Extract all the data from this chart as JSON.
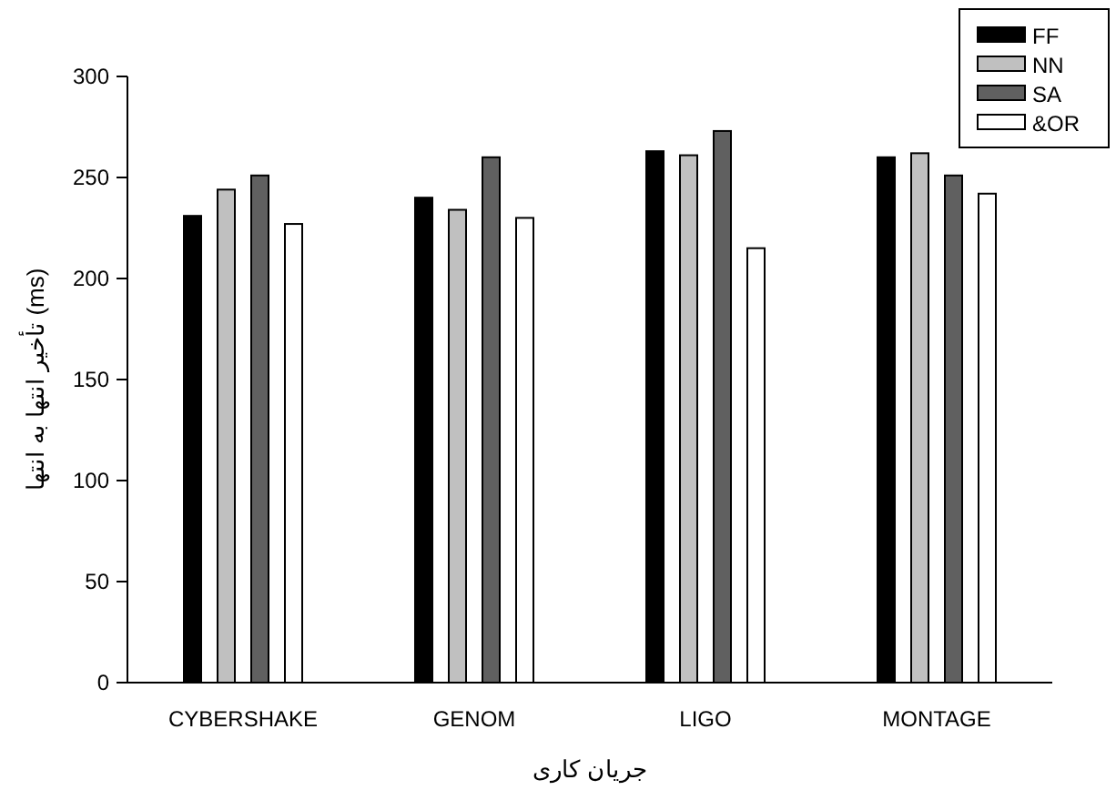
{
  "chart_data": {
    "type": "bar",
    "xlabel": "جریان کاری",
    "ylabel": "تأخیر انتها به انتها (ms)",
    "categories": [
      "CYBERSHAKE",
      "GENOM",
      "LIGO",
      "MONTAGE"
    ],
    "series": [
      {
        "name": "FF",
        "color": "#000000",
        "values": [
          231,
          240,
          263,
          260
        ]
      },
      {
        "name": "NN",
        "color": "#c0c0c0",
        "values": [
          244,
          234,
          261,
          262
        ]
      },
      {
        "name": "SA",
        "color": "#606060",
        "values": [
          251,
          260,
          273,
          251
        ]
      },
      {
        "name": "&OR",
        "color": "#ffffff",
        "values": [
          227,
          230,
          215,
          242
        ]
      }
    ],
    "ylim": [
      0,
      300
    ],
    "yticks": [
      0,
      50,
      100,
      150,
      200,
      250,
      300
    ],
    "grid": false,
    "legend": "top right"
  }
}
